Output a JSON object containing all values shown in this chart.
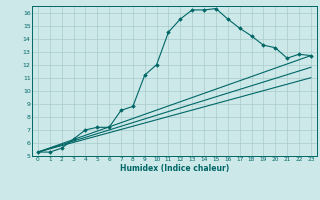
{
  "title": "",
  "xlabel": "Humidex (Indice chaleur)",
  "bg_color": "#cce8e8",
  "grid_color": "#aacccc",
  "line_color": "#006666",
  "xlim": [
    -0.5,
    23.5
  ],
  "ylim": [
    5,
    16.5
  ],
  "xticks": [
    0,
    1,
    2,
    3,
    4,
    5,
    6,
    7,
    8,
    9,
    10,
    11,
    12,
    13,
    14,
    15,
    16,
    17,
    18,
    19,
    20,
    21,
    22,
    23
  ],
  "yticks": [
    5,
    6,
    7,
    8,
    9,
    10,
    11,
    12,
    13,
    14,
    15,
    16
  ],
  "series": [
    {
      "x": [
        0,
        1,
        2,
        3,
        4,
        5,
        6,
        7,
        8,
        9,
        10,
        11,
        12,
        13,
        14,
        15,
        16,
        17,
        18,
        19,
        20,
        21,
        22,
        23
      ],
      "y": [
        5.3,
        5.3,
        5.6,
        6.3,
        7.0,
        7.2,
        7.2,
        8.5,
        8.8,
        11.2,
        12.0,
        14.5,
        15.5,
        16.2,
        16.2,
        16.3,
        15.5,
        14.8,
        14.2,
        13.5,
        13.3,
        12.5,
        12.8,
        12.7
      ],
      "marker": true
    },
    {
      "x": [
        0,
        23
      ],
      "y": [
        5.3,
        12.7
      ],
      "marker": false
    },
    {
      "x": [
        0,
        23
      ],
      "y": [
        5.3,
        11.8
      ],
      "marker": false
    },
    {
      "x": [
        0,
        23
      ],
      "y": [
        5.3,
        11.0
      ],
      "marker": false
    }
  ]
}
